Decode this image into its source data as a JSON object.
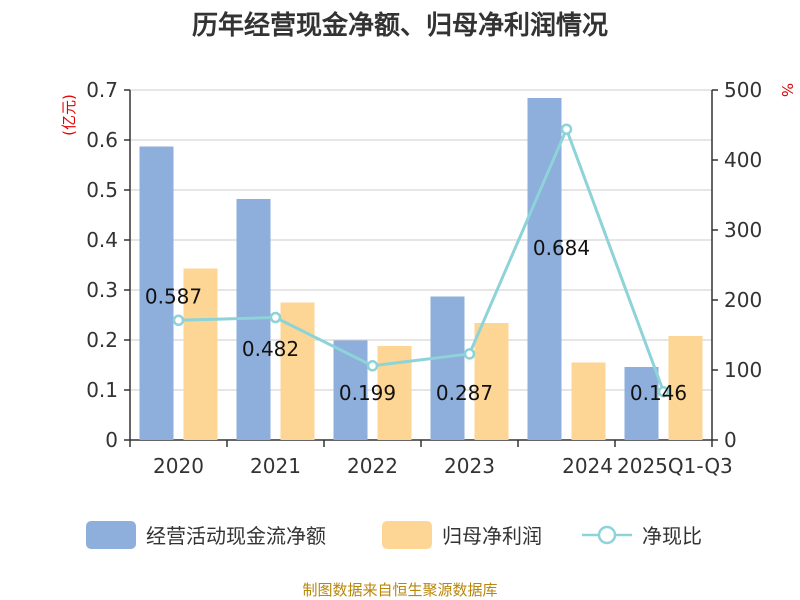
{
  "chart_data": {
    "type": "bar+line",
    "title": "历年经营现金净额、归母净利润情况",
    "categories": [
      "2020",
      "2021",
      "2022",
      "2023",
      "2024",
      "2025Q1-Q3"
    ],
    "series": [
      {
        "name": "经营活动现金流净额",
        "type": "bar",
        "axis": "left",
        "values": [
          0.587,
          0.482,
          0.199,
          0.287,
          0.684,
          0.146
        ]
      },
      {
        "name": "归母净利润",
        "type": "bar",
        "axis": "left",
        "values": [
          0.343,
          0.275,
          0.188,
          0.234,
          0.155,
          0.208
        ]
      },
      {
        "name": "净现比",
        "type": "line",
        "axis": "right",
        "values": [
          171,
          175,
          106,
          123,
          444,
          69
        ]
      }
    ],
    "data_labels": [
      "0.587",
      "0.482",
      "0.199",
      "0.287",
      "0.684",
      "0.146"
    ],
    "left_axis": {
      "unit": "(亿元)",
      "min": 0,
      "max": 0.7,
      "ticks": [
        "0",
        "0.1",
        "0.2",
        "0.3",
        "0.4",
        "0.5",
        "0.6",
        "0.7"
      ]
    },
    "right_axis": {
      "unit": "%",
      "min": 0,
      "max": 500,
      "ticks": [
        "0",
        "100",
        "200",
        "300",
        "400",
        "500"
      ]
    },
    "legend_position": "bottom",
    "colors": {
      "bar1": "#8eaedb",
      "bar2": "#fdd695",
      "line": "#8dd3d8",
      "axis": "#333333",
      "grid": "#cccccc",
      "unit": "#e60000",
      "source": "#b8860b"
    }
  },
  "source": "制图数据来自恒生聚源数据库"
}
